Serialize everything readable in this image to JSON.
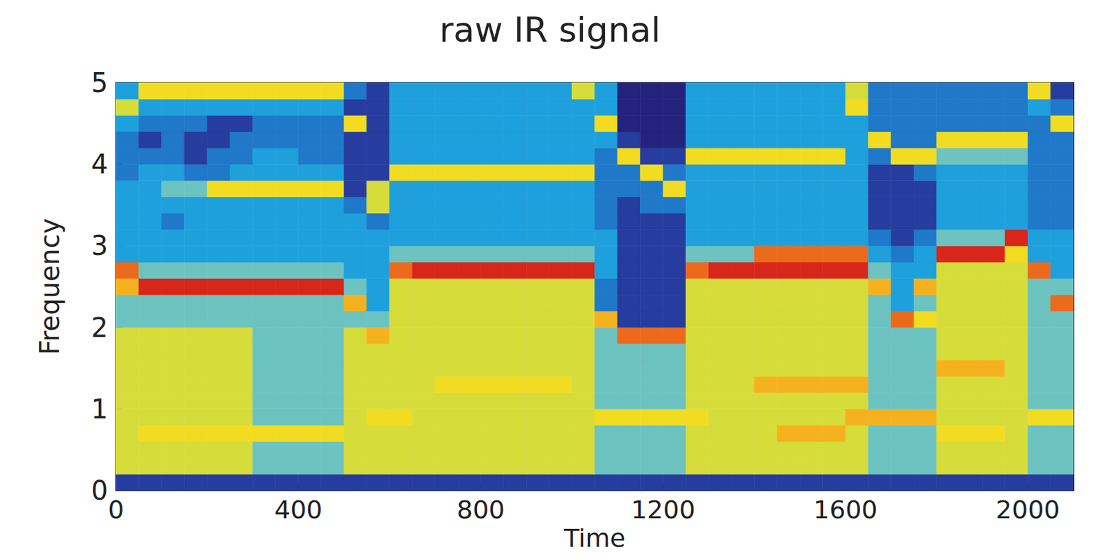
{
  "chart_data": {
    "type": "heatmap",
    "title": "raw IR signal",
    "x_label": "Time",
    "y_label": "Frequency",
    "x": [
      25,
      75,
      125,
      175,
      225,
      275,
      325,
      375,
      425,
      475,
      525,
      575,
      625,
      675,
      725,
      775,
      825,
      875,
      925,
      975,
      1025,
      1075,
      1125,
      1175,
      1225,
      1275,
      1325,
      1375,
      1425,
      1475,
      1525,
      1575,
      1625,
      1675,
      1725,
      1775,
      1825,
      1875,
      1925,
      1975,
      2025,
      2075
    ],
    "y": [
      0.1,
      0.3,
      0.5,
      0.7,
      0.9,
      1.1,
      1.3,
      1.5,
      1.7,
      1.9,
      2.1,
      2.3,
      2.5,
      2.7,
      2.9,
      3.1,
      3.3,
      3.5,
      3.7,
      3.9,
      4.1,
      4.3,
      4.5,
      4.7,
      4.9
    ],
    "cells": [
      [
        1,
        1,
        1,
        1,
        1,
        1,
        1,
        1,
        1,
        1,
        1,
        1,
        1,
        1,
        1,
        1,
        1,
        1,
        1,
        1,
        1,
        1,
        1,
        1,
        1,
        1,
        1,
        1,
        1,
        1,
        1,
        1,
        1,
        1,
        1,
        1,
        1,
        1,
        1,
        1,
        1,
        1
      ],
      [
        5,
        5,
        5,
        5,
        5,
        5,
        4,
        4,
        4,
        4,
        5,
        5,
        5,
        5,
        5,
        5,
        5,
        5,
        5,
        5,
        5,
        4,
        4,
        4,
        4,
        5,
        5,
        5,
        5,
        5,
        5,
        5,
        5,
        4,
        4,
        4,
        5,
        5,
        5,
        5,
        4,
        4
      ],
      [
        5,
        5,
        5,
        5,
        5,
        5,
        4,
        4,
        4,
        4,
        5,
        5,
        5,
        5,
        5,
        5,
        5,
        5,
        5,
        5,
        5,
        4,
        4,
        4,
        4,
        5,
        5,
        5,
        5,
        5,
        5,
        5,
        5,
        4,
        4,
        4,
        5,
        5,
        5,
        5,
        4,
        4
      ],
      [
        5,
        6,
        6,
        6,
        6,
        6,
        6,
        6,
        6,
        6,
        5,
        5,
        5,
        5,
        5,
        5,
        5,
        5,
        5,
        5,
        5,
        4,
        4,
        4,
        4,
        5,
        5,
        5,
        5,
        7,
        7,
        7,
        5,
        4,
        4,
        4,
        6,
        6,
        6,
        5,
        4,
        4
      ],
      [
        5,
        5,
        5,
        5,
        5,
        5,
        4,
        4,
        4,
        4,
        5,
        6,
        6,
        5,
        5,
        5,
        5,
        5,
        5,
        5,
        5,
        6,
        6,
        6,
        6,
        6,
        5,
        5,
        5,
        5,
        5,
        5,
        7,
        7,
        7,
        7,
        5,
        5,
        5,
        5,
        6,
        6
      ],
      [
        5,
        5,
        5,
        5,
        5,
        5,
        4,
        4,
        4,
        4,
        5,
        5,
        5,
        5,
        5,
        5,
        5,
        5,
        5,
        5,
        5,
        4,
        4,
        4,
        4,
        5,
        5,
        5,
        5,
        5,
        5,
        5,
        5,
        4,
        4,
        4,
        5,
        5,
        5,
        5,
        4,
        4
      ],
      [
        5,
        5,
        5,
        5,
        5,
        5,
        4,
        4,
        4,
        4,
        5,
        5,
        5,
        5,
        6,
        6,
        6,
        6,
        6,
        6,
        5,
        4,
        4,
        4,
        4,
        5,
        5,
        5,
        7,
        7,
        7,
        7,
        7,
        4,
        4,
        4,
        5,
        5,
        5,
        5,
        4,
        4
      ],
      [
        5,
        5,
        5,
        5,
        5,
        5,
        4,
        4,
        4,
        4,
        5,
        5,
        5,
        5,
        5,
        5,
        5,
        5,
        5,
        5,
        5,
        4,
        4,
        4,
        4,
        5,
        5,
        5,
        5,
        5,
        5,
        5,
        5,
        4,
        4,
        4,
        7,
        7,
        7,
        5,
        4,
        4
      ],
      [
        5,
        5,
        5,
        5,
        5,
        5,
        4,
        4,
        4,
        4,
        5,
        5,
        5,
        5,
        5,
        5,
        5,
        5,
        5,
        5,
        5,
        4,
        4,
        4,
        4,
        5,
        5,
        5,
        5,
        5,
        5,
        5,
        5,
        4,
        4,
        4,
        5,
        5,
        5,
        5,
        4,
        4
      ],
      [
        5,
        5,
        5,
        5,
        5,
        5,
        4,
        4,
        4,
        4,
        5,
        7,
        5,
        5,
        5,
        5,
        5,
        5,
        5,
        5,
        5,
        4,
        8,
        8,
        8,
        5,
        5,
        5,
        5,
        5,
        5,
        5,
        5,
        4,
        4,
        4,
        5,
        5,
        5,
        5,
        4,
        4
      ],
      [
        4,
        4,
        4,
        4,
        4,
        4,
        4,
        4,
        4,
        4,
        4,
        4,
        5,
        5,
        5,
        5,
        5,
        5,
        5,
        5,
        5,
        7,
        1,
        1,
        1,
        5,
        5,
        5,
        5,
        5,
        5,
        5,
        5,
        4,
        8,
        6,
        5,
        5,
        5,
        5,
        4,
        4
      ],
      [
        4,
        4,
        4,
        4,
        4,
        4,
        4,
        4,
        4,
        4,
        7,
        3,
        5,
        5,
        5,
        5,
        5,
        5,
        5,
        5,
        5,
        2,
        1,
        1,
        1,
        5,
        5,
        5,
        5,
        5,
        5,
        5,
        5,
        4,
        3,
        4,
        5,
        5,
        5,
        5,
        4,
        8
      ],
      [
        7,
        9,
        9,
        9,
        9,
        9,
        9,
        9,
        9,
        9,
        4,
        3,
        5,
        5,
        5,
        5,
        5,
        5,
        5,
        5,
        5,
        2,
        1,
        1,
        1,
        5,
        5,
        5,
        5,
        5,
        5,
        5,
        5,
        7,
        3,
        7,
        5,
        5,
        5,
        5,
        4,
        4
      ],
      [
        8,
        4,
        4,
        4,
        4,
        4,
        4,
        4,
        4,
        4,
        3,
        3,
        8,
        9,
        9,
        9,
        9,
        9,
        9,
        9,
        9,
        3,
        1,
        1,
        1,
        8,
        9,
        9,
        9,
        9,
        9,
        9,
        9,
        4,
        3,
        3,
        5,
        5,
        5,
        5,
        8,
        3
      ],
      [
        3,
        3,
        3,
        3,
        3,
        3,
        3,
        3,
        3,
        3,
        3,
        3,
        4,
        4,
        4,
        4,
        4,
        4,
        4,
        4,
        4,
        3,
        1,
        1,
        1,
        4,
        4,
        4,
        8,
        8,
        8,
        8,
        8,
        3,
        2,
        3,
        9,
        9,
        9,
        6,
        3,
        3
      ],
      [
        3,
        3,
        3,
        3,
        3,
        3,
        3,
        3,
        3,
        3,
        3,
        3,
        3,
        3,
        3,
        3,
        3,
        3,
        3,
        3,
        3,
        3,
        1,
        1,
        1,
        3,
        3,
        3,
        3,
        3,
        3,
        3,
        3,
        2,
        1,
        2,
        4,
        4,
        4,
        9,
        3,
        3
      ],
      [
        3,
        3,
        2,
        3,
        3,
        3,
        3,
        3,
        3,
        3,
        3,
        2,
        3,
        3,
        3,
        3,
        3,
        3,
        3,
        3,
        3,
        2,
        1,
        1,
        1,
        3,
        3,
        3,
        3,
        3,
        3,
        3,
        3,
        1,
        1,
        1,
        3,
        3,
        3,
        3,
        2,
        2
      ],
      [
        3,
        3,
        3,
        3,
        3,
        3,
        3,
        3,
        3,
        3,
        2,
        5,
        3,
        3,
        3,
        3,
        3,
        3,
        3,
        3,
        3,
        2,
        1,
        2,
        2,
        3,
        3,
        3,
        3,
        3,
        3,
        3,
        3,
        1,
        1,
        1,
        3,
        3,
        3,
        3,
        2,
        2
      ],
      [
        3,
        3,
        4,
        4,
        6,
        6,
        6,
        6,
        6,
        6,
        1,
        5,
        3,
        3,
        3,
        3,
        3,
        3,
        3,
        3,
        3,
        2,
        2,
        2,
        6,
        3,
        3,
        3,
        3,
        3,
        3,
        3,
        3,
        1,
        1,
        1,
        3,
        3,
        3,
        3,
        2,
        2
      ],
      [
        2,
        3,
        3,
        2,
        2,
        3,
        3,
        3,
        3,
        3,
        1,
        1,
        6,
        6,
        6,
        6,
        6,
        6,
        6,
        6,
        6,
        2,
        2,
        6,
        2,
        3,
        3,
        3,
        3,
        3,
        3,
        3,
        3,
        1,
        1,
        2,
        3,
        3,
        3,
        3,
        2,
        2
      ],
      [
        2,
        2,
        2,
        1,
        2,
        2,
        3,
        3,
        2,
        2,
        1,
        1,
        3,
        3,
        3,
        3,
        3,
        3,
        3,
        3,
        3,
        2,
        6,
        1,
        1,
        6,
        6,
        6,
        6,
        6,
        6,
        6,
        3,
        2,
        6,
        6,
        4,
        4,
        4,
        4,
        2,
        2
      ],
      [
        2,
        1,
        2,
        1,
        1,
        2,
        2,
        2,
        2,
        2,
        1,
        1,
        3,
        3,
        3,
        3,
        3,
        3,
        3,
        3,
        3,
        3,
        1,
        0,
        0,
        3,
        3,
        3,
        3,
        3,
        3,
        3,
        3,
        6,
        2,
        2,
        6,
        6,
        6,
        6,
        2,
        2
      ],
      [
        3,
        2,
        2,
        2,
        1,
        1,
        2,
        2,
        2,
        2,
        6,
        1,
        3,
        3,
        3,
        3,
        3,
        3,
        3,
        3,
        3,
        6,
        0,
        0,
        0,
        3,
        3,
        3,
        3,
        3,
        3,
        3,
        3,
        2,
        2,
        2,
        2,
        2,
        2,
        2,
        2,
        6
      ],
      [
        5,
        3,
        3,
        3,
        3,
        3,
        3,
        3,
        3,
        3,
        1,
        1,
        3,
        3,
        3,
        3,
        3,
        3,
        3,
        3,
        3,
        3,
        0,
        0,
        0,
        3,
        3,
        3,
        3,
        3,
        3,
        3,
        6,
        2,
        2,
        2,
        2,
        2,
        2,
        2,
        3,
        2
      ],
      [
        3,
        6,
        6,
        6,
        6,
        6,
        6,
        6,
        6,
        6,
        2,
        1,
        3,
        3,
        3,
        3,
        3,
        3,
        3,
        3,
        5,
        3,
        0,
        0,
        0,
        3,
        3,
        3,
        3,
        3,
        3,
        3,
        5,
        2,
        2,
        2,
        2,
        2,
        2,
        2,
        6,
        1
      ]
    ],
    "color_range": [
      0,
      9
    ],
    "xlim": [
      0,
      2100
    ],
    "ylim": [
      0,
      5
    ],
    "xticks": [
      0,
      400,
      800,
      1200,
      1600,
      2000
    ],
    "yticks": [
      0,
      1,
      2,
      3,
      4,
      5
    ]
  }
}
